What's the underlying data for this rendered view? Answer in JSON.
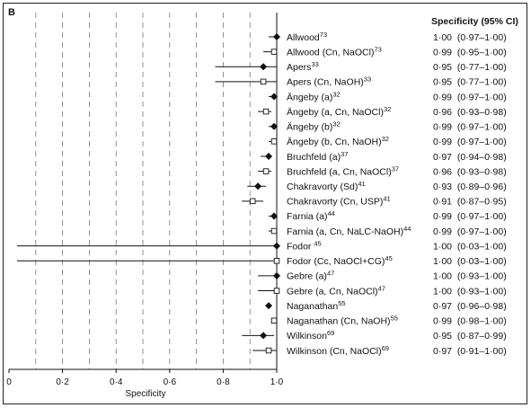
{
  "chart_data": {
    "type": "forest",
    "panel_label": "B",
    "xlabel": "Specificity",
    "column_header": "Specificity (95% CI)",
    "xlim": [
      0,
      1
    ],
    "x_ticks": [
      0,
      0.2,
      0.4,
      0.6,
      0.8,
      1.0
    ],
    "x_tick_labels": [
      "0",
      "0·2",
      "0·4",
      "0·6",
      "0·8",
      "1·0"
    ],
    "grid": "dashed vertical",
    "rows": [
      {
        "study": "Allwood",
        "sup": "73",
        "est": 1.0,
        "lo": 0.97,
        "hi": 1.0,
        "ci_text": "1·00  (0·97–1·00)",
        "marker": "filled"
      },
      {
        "study": "Allwood (Cn, NaOCl)",
        "sup": "73",
        "est": 0.99,
        "lo": 0.95,
        "hi": 1.0,
        "ci_text": "0·99  (0·95–1·00)",
        "marker": "open"
      },
      {
        "study": "Apers",
        "sup": "33",
        "est": 0.95,
        "lo": 0.77,
        "hi": 1.0,
        "ci_text": "0·95  (0·77–1·00)",
        "marker": "filled"
      },
      {
        "study": "Apers (Cn, NaOH)",
        "sup": "33",
        "est": 0.95,
        "lo": 0.77,
        "hi": 1.0,
        "ci_text": "0·95  (0·77–1·00)",
        "marker": "open"
      },
      {
        "study": "Ängeby (a)",
        "sup": "32",
        "est": 0.99,
        "lo": 0.97,
        "hi": 1.0,
        "ci_text": "0·99  (0·97–1·00)",
        "marker": "filled"
      },
      {
        "study": "Ängeby (a, Cn, NaOCl)",
        "sup": "32",
        "est": 0.96,
        "lo": 0.93,
        "hi": 0.98,
        "ci_text": "0·96  (0·93–0·98)",
        "marker": "open"
      },
      {
        "study": "Ängeby (b)",
        "sup": "32",
        "est": 0.99,
        "lo": 0.97,
        "hi": 1.0,
        "ci_text": "0·99  (0·97–1·00)",
        "marker": "filled"
      },
      {
        "study": "Ängeby (b, Cn, NaOH)",
        "sup": "32",
        "est": 0.99,
        "lo": 0.97,
        "hi": 1.0,
        "ci_text": "0·99  (0·97–1·00)",
        "marker": "open"
      },
      {
        "study": "Bruchfeld (a)",
        "sup": "37",
        "est": 0.97,
        "lo": 0.94,
        "hi": 0.98,
        "ci_text": "0·97  (0·94–0·98)",
        "marker": "filled"
      },
      {
        "study": "Bruchfeld (a, Cn, NaOCl)",
        "sup": "37",
        "est": 0.96,
        "lo": 0.93,
        "hi": 0.98,
        "ci_text": "0·96  (0·93–0·98)",
        "marker": "open"
      },
      {
        "study": "Chakravorty (Sd)",
        "sup": "41",
        "est": 0.93,
        "lo": 0.89,
        "hi": 0.96,
        "ci_text": "0·93  (0·89–0·96)",
        "marker": "filled"
      },
      {
        "study": "Chakravorty (Cn, USP)",
        "sup": "41",
        "est": 0.91,
        "lo": 0.87,
        "hi": 0.95,
        "ci_text": "0·91  (0·87–0·95)",
        "marker": "open"
      },
      {
        "study": "Farnia (a)",
        "sup": "44",
        "est": 0.99,
        "lo": 0.97,
        "hi": 1.0,
        "ci_text": "0·99  (0·97–1·00)",
        "marker": "filled"
      },
      {
        "study": "Farnia (a, Cn, NaLC-NaOH)",
        "sup": "44",
        "est": 0.99,
        "lo": 0.97,
        "hi": 1.0,
        "ci_text": "0·99  (0·97–1·00)",
        "marker": "open"
      },
      {
        "study": "Fodor ",
        "sup": "45",
        "est": 1.0,
        "lo": 0.03,
        "hi": 1.0,
        "ci_text": "1·00  (0·03–1·00)",
        "marker": "filled"
      },
      {
        "study": "Fodor (Cc, NaOCl+CG)",
        "sup": "45",
        "est": 1.0,
        "lo": 0.03,
        "hi": 1.0,
        "ci_text": "1·00  (0·03–1·00)",
        "marker": "open"
      },
      {
        "study": "Gebre (a)",
        "sup": "47",
        "est": 1.0,
        "lo": 0.93,
        "hi": 1.0,
        "ci_text": "1·00  (0·93–1·00)",
        "marker": "filled"
      },
      {
        "study": "Gebre (a, Cn, NaOCl)",
        "sup": "47",
        "est": 1.0,
        "lo": 0.93,
        "hi": 1.0,
        "ci_text": "1·00  (0·93–1·00)",
        "marker": "open"
      },
      {
        "study": "Naganathan",
        "sup": "55",
        "est": 0.97,
        "lo": 0.96,
        "hi": 0.98,
        "ci_text": "0·97  (0·96–0·98)",
        "marker": "filled"
      },
      {
        "study": "Naganathan (Cn, NaOH)",
        "sup": "55",
        "est": 0.99,
        "lo": 0.98,
        "hi": 1.0,
        "ci_text": "0·99  (0·98–1·00)",
        "marker": "open"
      },
      {
        "study": "Wilkinson",
        "sup": "69",
        "est": 0.95,
        "lo": 0.87,
        "hi": 0.99,
        "ci_text": "0·95  (0·87–0·99)",
        "marker": "filled"
      },
      {
        "study": "Wilkinson (Cn, NaOCl)",
        "sup": "69",
        "est": 0.97,
        "lo": 0.91,
        "hi": 1.0,
        "ci_text": "0·97  (0·91–1·00)",
        "marker": "open"
      }
    ]
  }
}
